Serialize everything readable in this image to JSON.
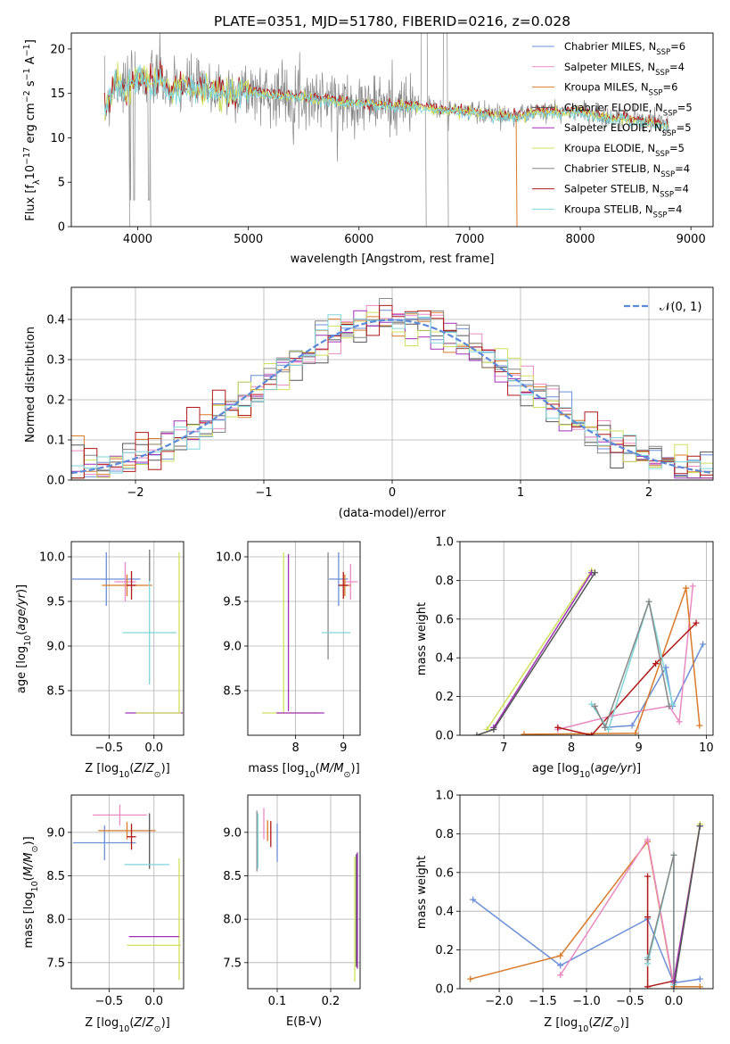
{
  "figure": {
    "title": "PLATE=0351, MJD=51780, FIBERID=0216, z=0.028"
  },
  "colors": {
    "Chabrier MILES": "#6a8fd8",
    "Salpeter MILES": "#e98ac3",
    "Kroupa MILES": "#d97a28",
    "Chabrier ELODIE": "#555555",
    "Salpeter ELODIE": "#a030b8",
    "Kroupa ELODIE": "#cfe05a",
    "Chabrier STELIB": "#888888",
    "Salpeter STELIB": "#b01818",
    "Kroupa STELIB": "#7fd6db"
  },
  "chart_data": [
    {
      "id": "spectrum",
      "type": "line",
      "title": "PLATE=0351, MJD=51780, FIBERID=0216, z=0.028",
      "xlabel": "wavelength [Angstrom, rest frame]",
      "ylabel": "Flux [f_λ 10^-17 erg cm^-2 s^-1 A^-1]",
      "xlim": [
        3400,
        9200
      ],
      "ylim": [
        0,
        21.8
      ],
      "xticks": [
        4000,
        5000,
        6000,
        7000,
        8000,
        9000
      ],
      "yticks": [
        0,
        5,
        10,
        15,
        20
      ],
      "legend_position": "top-right",
      "legend": [
        {
          "label": "Chabrier MILES, N",
          "sub": "SSP",
          "eq": "=6"
        },
        {
          "label": "Salpeter MILES, N",
          "sub": "SSP",
          "eq": "=4"
        },
        {
          "label": "Kroupa MILES, N",
          "sub": "SSP",
          "eq": "=6"
        },
        {
          "label": "Chabrier ELODIE, N",
          "sub": "SSP",
          "eq": "=5"
        },
        {
          "label": "Salpeter ELODIE, N",
          "sub": "SSP",
          "eq": "=5"
        },
        {
          "label": "Kroupa ELODIE, N",
          "sub": "SSP",
          "eq": "=5"
        },
        {
          "label": "Chabrier STELIB, N",
          "sub": "SSP",
          "eq": "=4"
        },
        {
          "label": "Salpeter STELIB, N",
          "sub": "SSP",
          "eq": "=4"
        },
        {
          "label": "Kroupa STELIB, N",
          "sub": "SSP",
          "eq": "=4"
        }
      ],
      "data_points": {
        "wavelength": [
          3700,
          3800,
          3900,
          4000,
          4100,
          4200,
          4300,
          4400,
          4600,
          4800,
          5000,
          5200,
          5400,
          5600,
          5800,
          6000,
          6200,
          6400,
          6600,
          6800,
          7000,
          7200,
          7400,
          7600,
          7800,
          8000,
          8200,
          8400,
          8600,
          8800
        ],
        "flux": [
          13.0,
          16.5,
          15.5,
          17.2,
          16.2,
          16.8,
          15.0,
          16.0,
          15.6,
          15.2,
          15.3,
          15.0,
          14.8,
          14.6,
          14.2,
          14.0,
          13.8,
          13.7,
          13.6,
          13.2,
          13.0,
          12.8,
          12.5,
          13.0,
          13.0,
          13.1,
          12.4,
          12.3,
          11.9,
          11.6
        ]
      }
    },
    {
      "id": "residuals",
      "type": "line",
      "xlabel": "(data-model)/error",
      "ylabel": "Normed distribution",
      "xlim": [
        -2.5,
        2.5
      ],
      "ylim": [
        0,
        0.48
      ],
      "xticks": [
        -2,
        -1,
        0,
        1,
        2
      ],
      "yticks": [
        0.0,
        0.1,
        0.2,
        0.3,
        0.4
      ],
      "grid": true,
      "legend_position": "top-right",
      "legend": [
        "𝒩(0, 1)"
      ],
      "gaussian": {
        "mean": 0,
        "sigma": 1
      }
    },
    {
      "id": "age-vs-Z",
      "type": "scatter",
      "xlabel": "Z [log10(Z/Z⊙)]",
      "ylabel": "age [log10(age/yr)]",
      "xlim": [
        -0.92,
        0.33
      ],
      "ylim": [
        8.0,
        10.17
      ],
      "xticks": [
        -0.5,
        0.0
      ],
      "yticks": [
        8.5,
        9.0,
        9.5,
        10.0
      ],
      "grid": true,
      "errorbars": [
        {
          "model": "Chabrier MILES",
          "x": -0.53,
          "y": 9.75,
          "xerr": 0.38,
          "yerr": 0.3
        },
        {
          "model": "Salpeter MILES",
          "x": -0.32,
          "y": 9.72,
          "xerr": 0.12,
          "yerr": 0.22
        },
        {
          "model": "Kroupa MILES",
          "x": -0.3,
          "y": 9.68,
          "xerr": 0.28,
          "yerr": 0.12
        },
        {
          "model": "Chabrier ELODIE",
          "x": -0.05,
          "y": 9.9,
          "xerr": 0.0,
          "yerr": 0.18
        },
        {
          "model": "Salpeter STELIB",
          "x": -0.25,
          "y": 9.68,
          "xerr": 0.05,
          "yerr": 0.16
        },
        {
          "model": "Chabrier STELIB",
          "x": -0.05,
          "y": 9.9,
          "xerr": 0.0,
          "yerr": 0.18
        },
        {
          "model": "Kroupa STELIB",
          "x": -0.05,
          "y": 9.15,
          "xerr": 0.3,
          "yerr": 0.58
        },
        {
          "model": "Kroupa ELODIE",
          "x": 0.28,
          "y": 9.15,
          "xerr": 0.0,
          "yerr": 0.9
        },
        {
          "model": "Salpeter ELODIE",
          "x": 0.0,
          "y": 8.25,
          "xerr": 0.32,
          "yerr": 0.0
        },
        {
          "model": "Kroupa ELODIE",
          "x": 0.05,
          "y": 8.25,
          "xerr": 0.25,
          "yerr": 0.0
        }
      ]
    },
    {
      "id": "age-vs-mass",
      "type": "scatter",
      "xlabel": "mass [log10(M/M⊙)]",
      "ylabel": "",
      "xlim": [
        7.0,
        9.35
      ],
      "ylim": [
        8.0,
        10.17
      ],
      "xticks": [
        8,
        9
      ],
      "yticks": [
        8.5,
        9.0,
        9.5,
        10.0
      ],
      "grid": true,
      "errorbars": [
        {
          "model": "Kroupa ELODIE",
          "x": 7.75,
          "y": 9.15,
          "xerr": 0.0,
          "yerr": 0.9
        },
        {
          "model": "Salpeter ELODIE",
          "x": 7.85,
          "y": 9.15,
          "xerr": 0.0,
          "yerr": 0.88
        },
        {
          "model": "Kroupa ELODIE",
          "x": 7.9,
          "y": 8.25,
          "xerr": 0.6,
          "yerr": 0.0
        },
        {
          "model": "Salpeter ELODIE",
          "x": 8.1,
          "y": 8.25,
          "xerr": 0.5,
          "yerr": 0.0
        },
        {
          "model": "Chabrier STELIB",
          "x": 8.68,
          "y": 9.45,
          "xerr": 0.0,
          "yerr": 0.6
        },
        {
          "model": "Kroupa STELIB",
          "x": 8.85,
          "y": 9.15,
          "xerr": 0.3,
          "yerr": 0.0
        },
        {
          "model": "Chabrier MILES",
          "x": 8.9,
          "y": 9.75,
          "xerr": 0.2,
          "yerr": 0.3
        },
        {
          "model": "Salpeter MILES",
          "x": 9.15,
          "y": 9.72,
          "xerr": 0.15,
          "yerr": 0.2
        },
        {
          "model": "Kroupa MILES",
          "x": 9.03,
          "y": 9.68,
          "xerr": 0.12,
          "yerr": 0.12
        },
        {
          "model": "Salpeter STELIB",
          "x": 9.0,
          "y": 9.68,
          "xerr": 0.1,
          "yerr": 0.15
        }
      ]
    },
    {
      "id": "massweight-vs-age",
      "type": "line",
      "xlabel": "age [log10(age/yr)]",
      "ylabel": "mass weight",
      "xlim": [
        6.35,
        10.1
      ],
      "ylim": [
        0,
        1.0
      ],
      "xticks": [
        7,
        8,
        9,
        10
      ],
      "yticks": [
        0.0,
        0.2,
        0.4,
        0.6,
        0.8,
        1.0
      ],
      "grid": true,
      "series": [
        {
          "name": "Chabrier MILES",
          "x": [
            8.5,
            8.9,
            9.4,
            9.5,
            9.95
          ],
          "y": [
            0.04,
            0.05,
            0.35,
            0.15,
            0.47
          ]
        },
        {
          "name": "Salpeter MILES",
          "x": [
            7.8,
            8.6,
            9.45,
            9.6,
            9.8
          ],
          "y": [
            0.03,
            0.1,
            0.15,
            0.07,
            0.77
          ]
        },
        {
          "name": "Kroupa MILES",
          "x": [
            7.3,
            8.95,
            9.7,
            9.9
          ],
          "y": [
            0.005,
            0.01,
            0.76,
            0.05
          ]
        },
        {
          "name": "Kroupa ELODIE",
          "x": [
            6.75,
            8.3
          ],
          "y": [
            0.03,
            0.85
          ]
        },
        {
          "name": "Salpeter ELODIE",
          "x": [
            6.85,
            8.3
          ],
          "y": [
            0.04,
            0.84
          ]
        },
        {
          "name": "Chabrier ELODIE",
          "x": [
            6.6,
            6.85,
            8.35
          ],
          "y": [
            0.0,
            0.03,
            0.84
          ]
        },
        {
          "name": "Salpeter STELIB",
          "x": [
            7.8,
            8.3,
            9.25,
            9.85
          ],
          "y": [
            0.04,
            0.0,
            0.37,
            0.58
          ]
        },
        {
          "name": "Kroupa STELIB",
          "x": [
            8.3,
            8.55,
            9.15,
            9.5
          ],
          "y": [
            0.16,
            0.03,
            0.69,
            0.16
          ]
        },
        {
          "name": "Chabrier STELIB",
          "x": [
            8.35,
            8.5,
            9.15,
            9.45
          ],
          "y": [
            0.15,
            0.04,
            0.69,
            0.15
          ]
        }
      ]
    },
    {
      "id": "mass-vs-Z",
      "type": "scatter",
      "xlabel": "Z [log10(Z/Z⊙)]",
      "ylabel": "mass [log10(M/M⊙)]",
      "xlim": [
        -0.92,
        0.33
      ],
      "ylim": [
        7.2,
        9.43
      ],
      "xticks": [
        -0.5,
        0.0
      ],
      "yticks": [
        7.5,
        8.0,
        8.5,
        9.0
      ],
      "grid": true,
      "errorbars": [
        {
          "model": "Chabrier MILES",
          "x": -0.55,
          "y": 8.88,
          "xerr": 0.35,
          "yerr": 0.2
        },
        {
          "model": "Salpeter MILES",
          "x": -0.38,
          "y": 9.2,
          "xerr": 0.3,
          "yerr": 0.12
        },
        {
          "model": "Kroupa MILES",
          "x": -0.3,
          "y": 9.02,
          "xerr": 0.32,
          "yerr": 0.1
        },
        {
          "model": "Salpeter STELIB",
          "x": -0.25,
          "y": 8.95,
          "xerr": 0.05,
          "yerr": 0.15
        },
        {
          "model": "Chabrier ELODIE",
          "x": -0.05,
          "y": 8.9,
          "xerr": 0.0,
          "yerr": 0.32
        },
        {
          "model": "Kroupa STELIB",
          "x": -0.08,
          "y": 8.63,
          "xerr": 0.25,
          "yerr": 0.0
        },
        {
          "model": "Kroupa ELODIE",
          "x": 0.28,
          "y": 8.0,
          "xerr": 0.0,
          "yerr": 0.7
        },
        {
          "model": "Salpeter ELODIE",
          "x": 0.0,
          "y": 7.8,
          "xerr": 0.28,
          "yerr": 0.0
        },
        {
          "model": "Kroupa ELODIE",
          "x": 0.0,
          "y": 7.7,
          "xerr": 0.3,
          "yerr": 0.0
        }
      ]
    },
    {
      "id": "mass-vs-EBV",
      "type": "scatter",
      "xlabel": "E(B-V)",
      "ylabel": "",
      "xlim": [
        0.045,
        0.255
      ],
      "ylim": [
        7.2,
        9.43
      ],
      "xticks": [
        0.1,
        0.2
      ],
      "yticks": [
        7.5,
        8.0,
        8.5,
        9.0
      ],
      "grid": true,
      "errorbars": [
        {
          "model": "Chabrier STELIB",
          "x": 0.062,
          "y": 8.9,
          "xerr": 0.0,
          "yerr": 0.35
        },
        {
          "model": "Kroupa STELIB",
          "x": 0.064,
          "y": 8.9,
          "xerr": 0.0,
          "yerr": 0.32
        },
        {
          "model": "Salpeter MILES",
          "x": 0.075,
          "y": 9.1,
          "xerr": 0.0,
          "yerr": 0.18
        },
        {
          "model": "Kroupa MILES",
          "x": 0.082,
          "y": 9.02,
          "xerr": 0.0,
          "yerr": 0.12
        },
        {
          "model": "Salpeter STELIB",
          "x": 0.088,
          "y": 8.98,
          "xerr": 0.0,
          "yerr": 0.15
        },
        {
          "model": "Chabrier MILES",
          "x": 0.1,
          "y": 8.88,
          "xerr": 0.0,
          "yerr": 0.22
        },
        {
          "model": "Kroupa ELODIE",
          "x": 0.245,
          "y": 8.0,
          "xerr": 0.0,
          "yerr": 0.72
        },
        {
          "model": "Chabrier ELODIE",
          "x": 0.248,
          "y": 8.1,
          "xerr": 0.0,
          "yerr": 0.65
        },
        {
          "model": "Salpeter ELODIE",
          "x": 0.25,
          "y": 8.1,
          "xerr": 0.0,
          "yerr": 0.67
        }
      ]
    },
    {
      "id": "massweight-vs-Z",
      "type": "line",
      "xlabel": "Z [log10(Z/Z⊙)]",
      "ylabel": "mass weight",
      "xlim": [
        -2.45,
        0.45
      ],
      "ylim": [
        0,
        1.0
      ],
      "xticks": [
        -2.0,
        -1.5,
        -1.0,
        -0.5,
        0.0
      ],
      "yticks": [
        0.0,
        0.2,
        0.4,
        0.6,
        0.8,
        1.0
      ],
      "grid": true,
      "series": [
        {
          "name": "Chabrier MILES",
          "x": [
            -2.3,
            -1.3,
            -0.3,
            0.0,
            0.3
          ],
          "y": [
            0.46,
            0.12,
            0.36,
            0.03,
            0.05
          ]
        },
        {
          "name": "Kroupa MILES",
          "x": [
            -2.33,
            -1.3,
            -0.3,
            0.0,
            0.3
          ],
          "y": [
            0.05,
            0.17,
            0.76,
            0.01,
            0.01
          ]
        },
        {
          "name": "Salpeter MILES",
          "x": [
            -1.3,
            -0.3,
            0.0
          ],
          "y": [
            0.07,
            0.77,
            0.02
          ]
        },
        {
          "name": "Salpeter STELIB",
          "x": [
            -0.3,
            -0.3,
            -0.3,
            0.0
          ],
          "y": [
            0.58,
            0.37,
            0.01,
            0.04
          ]
        },
        {
          "name": "Kroupa STELIB",
          "x": [
            -0.3,
            -0.3,
            0.0,
            0.0
          ],
          "y": [
            0.16,
            0.13,
            0.69,
            0.02
          ]
        },
        {
          "name": "Chabrier STELIB",
          "x": [
            -0.3,
            0.0,
            0.0
          ],
          "y": [
            0.15,
            0.69,
            0.04
          ]
        },
        {
          "name": "Kroupa ELODIE",
          "x": [
            0.0,
            0.3
          ],
          "y": [
            0.04,
            0.85
          ]
        },
        {
          "name": "Salpeter ELODIE",
          "x": [
            0.0,
            0.3
          ],
          "y": [
            0.04,
            0.84
          ]
        },
        {
          "name": "Chabrier ELODIE",
          "x": [
            0.0,
            0.3
          ],
          "y": [
            0.0,
            0.84
          ]
        }
      ]
    }
  ]
}
